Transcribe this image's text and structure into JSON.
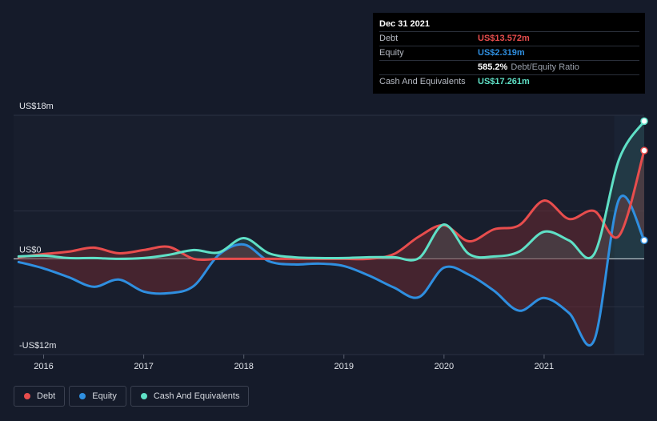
{
  "tooltip": {
    "date": "Dec 31 2021",
    "rows": [
      {
        "label": "Debt",
        "value": "US$13.572m",
        "color": "#e84d4d"
      },
      {
        "label": "Equity",
        "value": "US$2.319m",
        "color": "#2f8fe0"
      },
      {
        "label": "Cash And Equivalents",
        "value": "US$17.261m",
        "color": "#5fe0c6"
      }
    ],
    "ratio_value": "585.2%",
    "ratio_label": "Debt/Equity Ratio"
  },
  "legend": [
    {
      "label": "Debt",
      "color": "#e84d4d"
    },
    {
      "label": "Equity",
      "color": "#2f8fe0"
    },
    {
      "label": "Cash And Equivalents",
      "color": "#5fe0c6"
    }
  ],
  "chart_data": {
    "type": "line",
    "y_labels": [
      "US$18m",
      "US$0",
      "-US$12m"
    ],
    "x_ticks": [
      "2016",
      "2017",
      "2018",
      "2019",
      "2020",
      "2021"
    ],
    "ylim": [
      -12,
      18
    ],
    "xlim": [
      2015.7,
      2022.0
    ],
    "grid": true,
    "legend_position": "bottom-left",
    "series": [
      {
        "name": "Debt",
        "color": "#e84d4d",
        "x": [
          2015.75,
          2016.0,
          2016.25,
          2016.5,
          2016.75,
          2017.0,
          2017.25,
          2017.5,
          2017.75,
          2018.0,
          2018.25,
          2018.5,
          2018.75,
          2019.0,
          2019.25,
          2019.5,
          2019.75,
          2020.0,
          2020.25,
          2020.5,
          2020.75,
          2021.0,
          2021.25,
          2021.5,
          2021.75,
          2022.0
        ],
        "y": [
          0.2,
          0.6,
          0.9,
          1.4,
          0.7,
          1.1,
          1.5,
          0.0,
          0.0,
          0.0,
          0.0,
          0.0,
          0.0,
          0.0,
          0.0,
          0.6,
          2.8,
          4.2,
          2.2,
          3.7,
          4.2,
          7.3,
          5.0,
          6.0,
          2.9,
          13.572
        ]
      },
      {
        "name": "Equity",
        "color": "#2f8fe0",
        "x": [
          2015.75,
          2016.0,
          2016.25,
          2016.5,
          2016.75,
          2017.0,
          2017.25,
          2017.5,
          2017.75,
          2018.0,
          2018.25,
          2018.5,
          2018.75,
          2019.0,
          2019.25,
          2019.5,
          2019.75,
          2020.0,
          2020.25,
          2020.5,
          2020.75,
          2021.0,
          2021.25,
          2021.5,
          2021.75,
          2022.0
        ],
        "y": [
          -0.4,
          -1.2,
          -2.3,
          -3.5,
          -2.6,
          -4.1,
          -4.3,
          -3.4,
          0.5,
          1.8,
          -0.3,
          -0.7,
          -0.6,
          -0.9,
          -2.1,
          -3.6,
          -4.8,
          -1.1,
          -2.0,
          -4.0,
          -6.5,
          -4.9,
          -6.8,
          -10.2,
          7.5,
          2.319
        ]
      },
      {
        "name": "Cash And Equivalents",
        "color": "#5fe0c6",
        "x": [
          2015.75,
          2016.0,
          2016.25,
          2016.5,
          2016.75,
          2017.0,
          2017.25,
          2017.5,
          2017.75,
          2018.0,
          2018.25,
          2018.5,
          2018.75,
          2019.0,
          2019.25,
          2019.5,
          2019.75,
          2020.0,
          2020.25,
          2020.5,
          2020.75,
          2021.0,
          2021.25,
          2021.5,
          2021.75,
          2022.0
        ],
        "y": [
          0.3,
          0.4,
          0.1,
          0.1,
          0.0,
          0.1,
          0.5,
          1.1,
          0.8,
          2.6,
          0.7,
          0.2,
          0.1,
          0.1,
          0.2,
          0.2,
          0.1,
          4.3,
          0.6,
          0.3,
          0.9,
          3.4,
          2.3,
          0.6,
          12.5,
          17.261
        ]
      }
    ]
  }
}
